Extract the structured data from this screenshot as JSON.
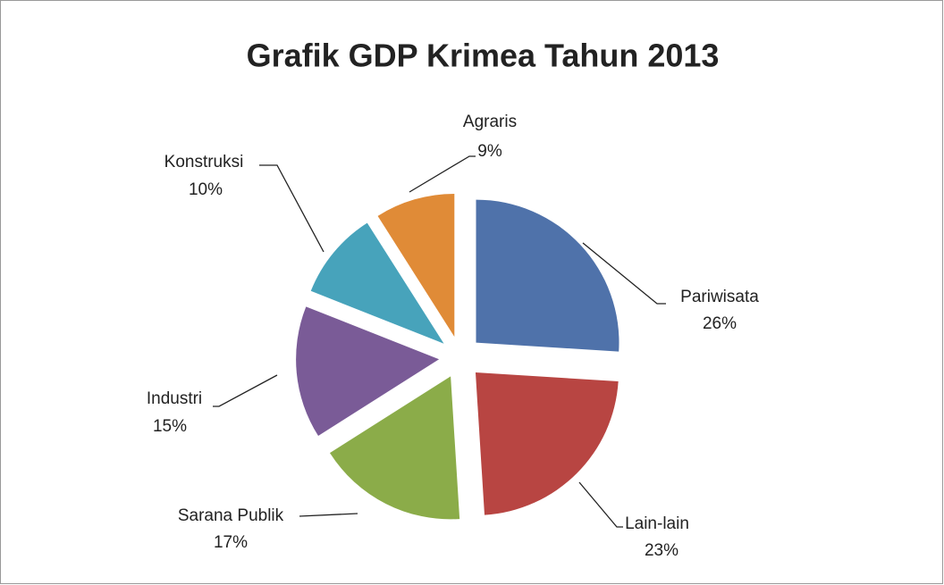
{
  "chart_data": {
    "type": "pie",
    "title": "Grafik GDP Krimea Tahun 2013",
    "categories": [
      "Pariwisata",
      "Lain-lain",
      "Sarana Publik",
      "Industri",
      "Konstruksi",
      "Agraris"
    ],
    "values": [
      26,
      23,
      17,
      15,
      10,
      9
    ],
    "value_labels": [
      "26%",
      "23%",
      "17%",
      "15%",
      "10%",
      "9%"
    ],
    "colors": [
      "#4f72aa",
      "#b84542",
      "#8bac49",
      "#7a5b97",
      "#47a3bb",
      "#e08b37"
    ]
  }
}
